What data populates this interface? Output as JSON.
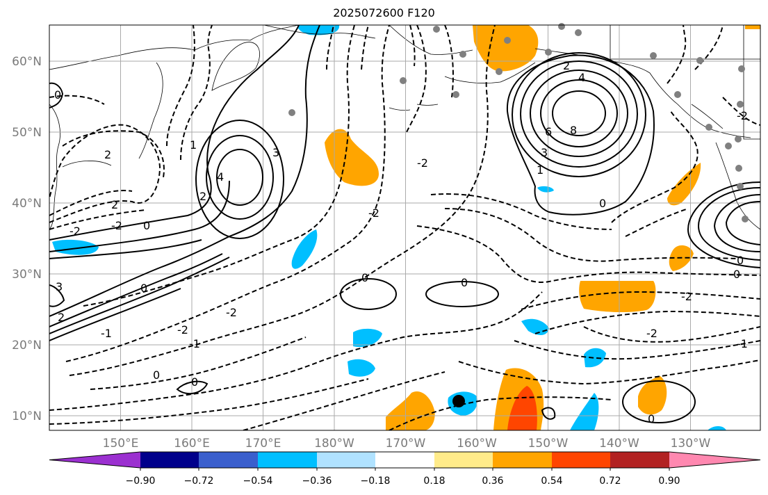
{
  "title": "2025072600 F120",
  "map": {
    "projection": "cylindrical",
    "lon_labels": [
      "150°E",
      "160°E",
      "170°E",
      "180°W",
      "170°W",
      "160°W",
      "150°W",
      "140°W",
      "130°W"
    ],
    "lat_labels": [
      "60°N",
      "50°N",
      "40°N",
      "30°N",
      "20°N",
      "10°N"
    ],
    "contour_labels": [
      "0",
      "2",
      "1",
      "3",
      "4",
      "2",
      "-2",
      "0",
      "-2",
      "2",
      "4",
      "6",
      "8",
      "3",
      "1",
      "0",
      "2",
      "-2",
      "-2",
      "0",
      "0",
      "-2",
      "-1",
      "0",
      "0",
      "-1",
      "2",
      "-2",
      "-1",
      "0",
      "-2",
      "0",
      "0",
      "-2",
      "3",
      "-2",
      "0"
    ],
    "contour_line_color": "#000000",
    "marker": {
      "symbol": "filled-circle",
      "color": "#000000"
    },
    "station_dot_color": "#808080"
  },
  "colorbar": {
    "tick_labels": [
      "−0.90",
      "−0.72",
      "−0.54",
      "−0.36",
      "−0.18",
      "0.18",
      "0.36",
      "0.54",
      "0.72",
      "0.90"
    ],
    "colors": [
      "#9b30d0",
      "#00008b",
      "#3a5fcd",
      "#00bfff",
      "#b0e2ff",
      "#ffffff",
      "#ffeb8a",
      "#ffa500",
      "#ff4500",
      "#b22222",
      "#ff88b0"
    ],
    "extend": "both"
  }
}
